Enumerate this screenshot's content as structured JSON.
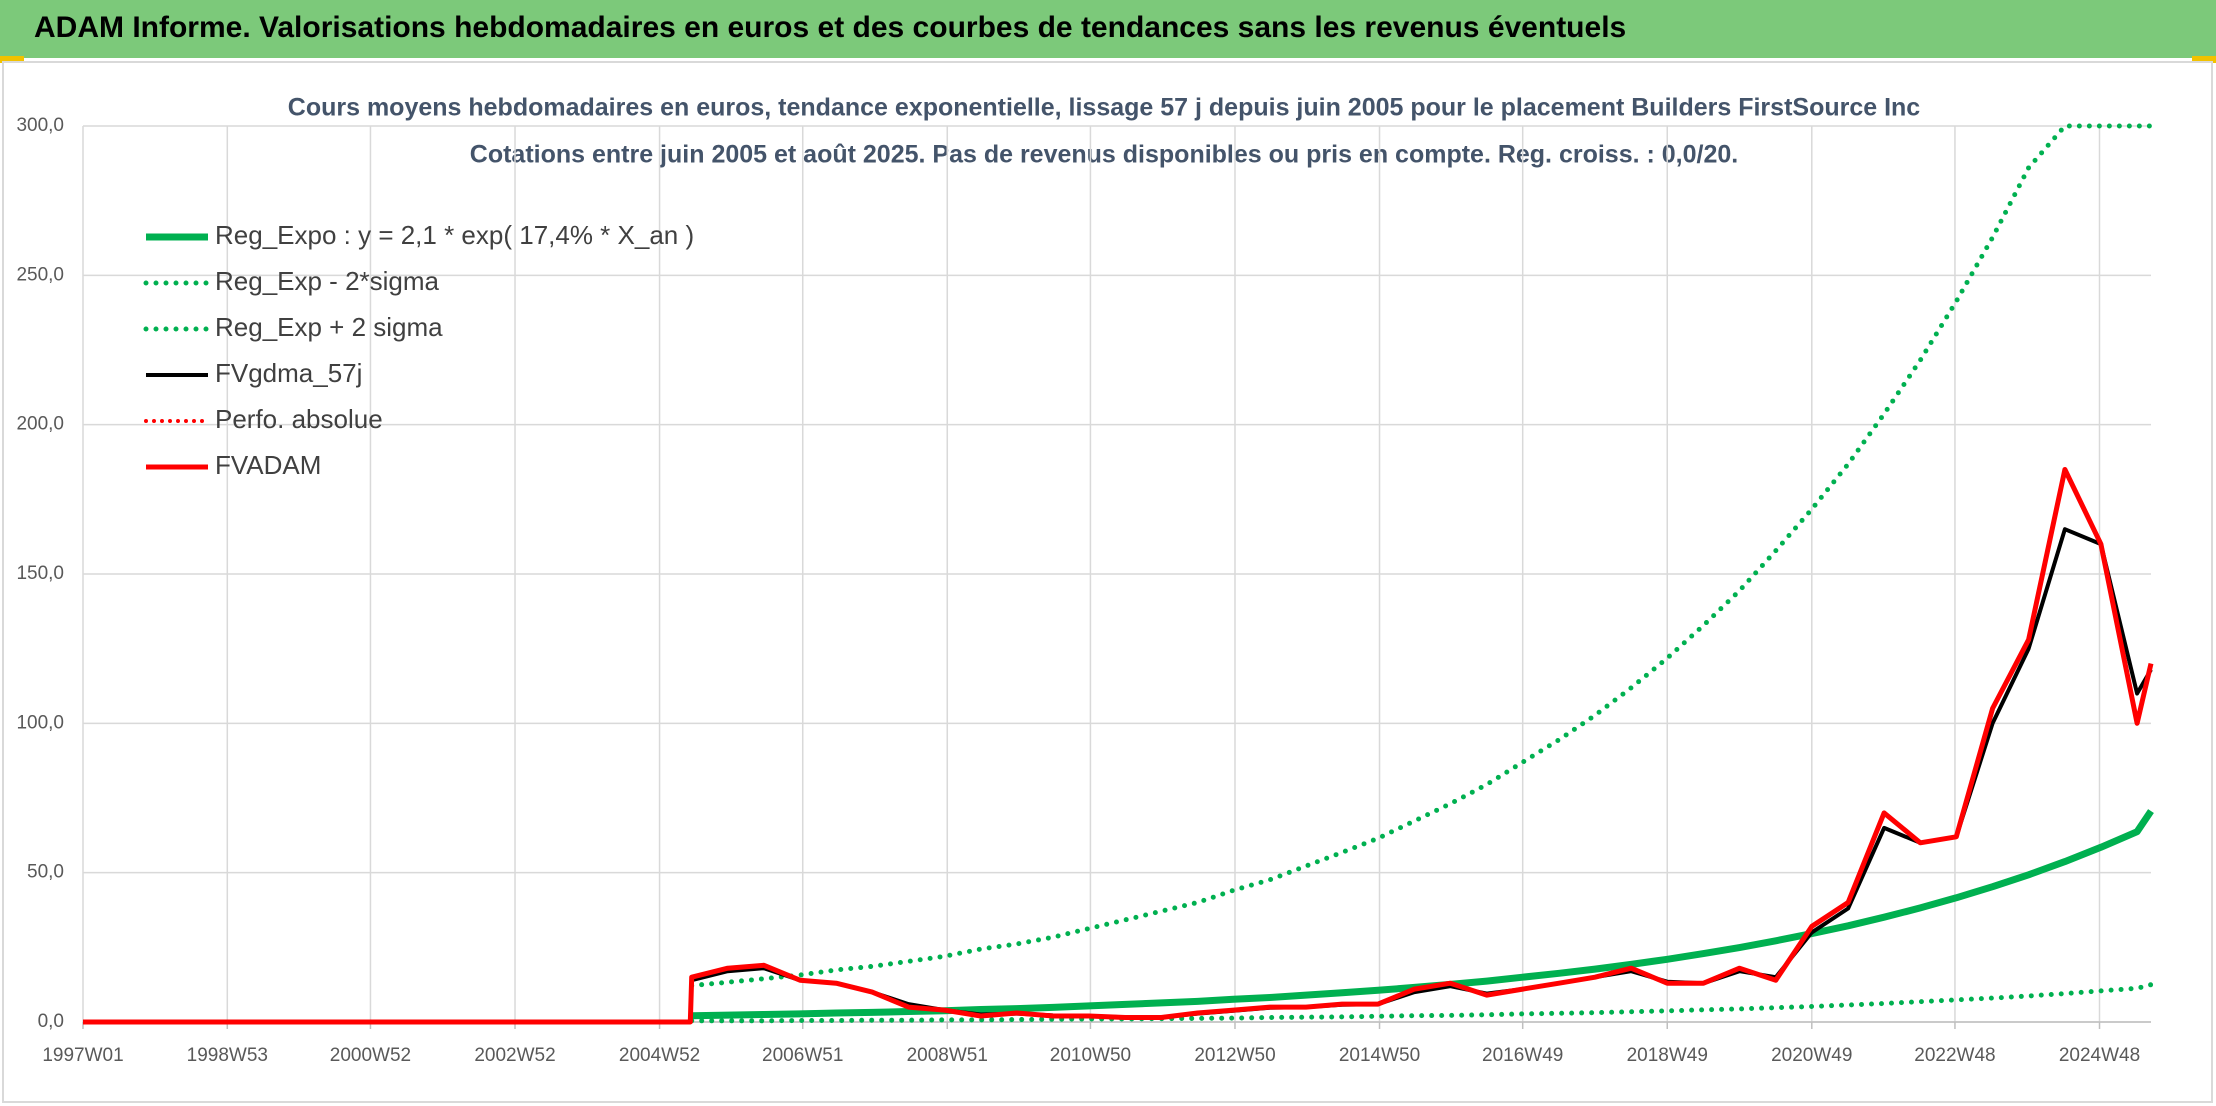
{
  "header": {
    "title": "ADAM Informe. Valorisations hebdomadaires en euros et des courbes de tendances sans les revenus éventuels"
  },
  "chart_data": {
    "type": "line",
    "title": "Cours moyens hebdomadaires en euros, tendance exponentielle, lissage 57 j depuis juin 2005 pour le placement Builders FirstSource Inc",
    "subtitle": "Cotations entre juin 2005 et août 2025. Pas de revenus disponibles ou pris en compte. Reg. croiss. : 0,0/20.",
    "x": [
      "1997W01",
      "2005W22",
      "2005W23",
      "2005W49",
      "2006W23",
      "2006W49",
      "2007W23",
      "2007W49",
      "2008W23",
      "2008W49",
      "2009W23",
      "2009W49",
      "2010W23",
      "2010W49",
      "2011W23",
      "2011W49",
      "2012W23",
      "2012W49",
      "2013W23",
      "2013W49",
      "2014W23",
      "2014W49",
      "2015W23",
      "2015W49",
      "2016W23",
      "2016W49",
      "2017W23",
      "2017W49",
      "2018W23",
      "2018W49",
      "2019W23",
      "2019W49",
      "2020W23",
      "2020W49",
      "2021W23",
      "2021W49",
      "2022W23",
      "2022W49",
      "2023W23",
      "2023W49",
      "2024W23",
      "2024W49",
      "2025W23",
      "2025W33"
    ],
    "xlim": [
      "1997W01",
      "2025W33"
    ],
    "xticks": [
      "1997W01",
      "1998W53",
      "2000W52",
      "2002W52",
      "2004W52",
      "2006W51",
      "2008W51",
      "2010W50",
      "2012W50",
      "2014W50",
      "2016W49",
      "2018W49",
      "2020W49",
      "2022W48",
      "2024W48"
    ],
    "ylim": [
      0,
      300
    ],
    "yticks": [
      {
        "value": 0,
        "label": "0,0"
      },
      {
        "value": 50,
        "label": "50,0"
      },
      {
        "value": 100,
        "label": "100,0"
      },
      {
        "value": 150,
        "label": "150,0"
      },
      {
        "value": 200,
        "label": "200,0"
      },
      {
        "value": 250,
        "label": "250,0"
      },
      {
        "value": 300,
        "label": "300,0"
      }
    ],
    "grid": true,
    "legend": "top-left",
    "series": [
      {
        "name": "Reg_Expo : y = 2,1 * exp( 17,4% *  X_an )",
        "color": "#00b050",
        "style": "solid",
        "width": 7,
        "values": [
          null,
          null,
          2.1,
          2.3,
          2.5,
          2.7,
          3.0,
          3.2,
          3.5,
          3.8,
          4.2,
          4.5,
          4.9,
          5.4,
          5.9,
          6.4,
          6.9,
          7.6,
          8.2,
          9.0,
          9.8,
          10.6,
          11.6,
          12.6,
          13.7,
          15.0,
          16.3,
          17.7,
          19.3,
          21.0,
          22.9,
          24.9,
          27.2,
          29.6,
          32.2,
          35.1,
          38.2,
          41.6,
          45.3,
          49.3,
          53.7,
          58.5,
          63.7,
          70.6
        ]
      },
      {
        "name": "Reg_Exp - 2*sigma",
        "color": "#00b050",
        "style": "dotted",
        "width": 5,
        "values": [
          null,
          null,
          0.4,
          0.4,
          0.4,
          0.5,
          0.5,
          0.6,
          0.6,
          0.7,
          0.7,
          0.8,
          0.9,
          1.0,
          1.0,
          1.1,
          1.2,
          1.3,
          1.5,
          1.6,
          1.7,
          1.9,
          2.1,
          2.2,
          2.4,
          2.7,
          2.9,
          3.1,
          3.4,
          3.7,
          4.1,
          4.4,
          4.8,
          5.2,
          5.7,
          6.2,
          6.8,
          7.4,
          8.0,
          8.7,
          9.5,
          10.4,
          11.3,
          12.5
        ]
      },
      {
        "name": "Reg_Exp + 2 sigma",
        "color": "#00b050",
        "style": "dotted",
        "width": 5,
        "values": [
          null,
          null,
          12.2,
          13.3,
          14.5,
          15.7,
          17.4,
          18.6,
          20.3,
          22.0,
          24.4,
          26.1,
          28.4,
          31.3,
          34.2,
          37.1,
          40.0,
          44.1,
          47.6,
          52.2,
          56.8,
          61.5,
          67.3,
          73.1,
          79.5,
          87.0,
          94.5,
          102.7,
          111.9,
          121.8,
          132.8,
          144.4,
          157.8,
          171.7,
          186.8,
          203.6,
          221.6,
          241.3,
          262.7,
          286.0,
          300,
          300,
          300,
          300
        ]
      },
      {
        "name": "FVgdma_57j",
        "color": "#000000",
        "style": "solid",
        "width": 4,
        "values": [
          0,
          0,
          14,
          17,
          18,
          14,
          13,
          10,
          6,
          4,
          2.5,
          2.8,
          2.2,
          2,
          1.6,
          1.6,
          2.8,
          3.8,
          4.8,
          5,
          5.8,
          6,
          10,
          12,
          9.5,
          11,
          13,
          15,
          17,
          13.5,
          13,
          17,
          15,
          30,
          38,
          65,
          60,
          62,
          100,
          125,
          165,
          160,
          110,
          118
        ]
      },
      {
        "name": "Perfo. absolue",
        "color": "#ff0000",
        "style": "dotted",
        "width": 4,
        "values": [
          null,
          null,
          null,
          null,
          null,
          null,
          null,
          null,
          null,
          null,
          null,
          null,
          null,
          null,
          null,
          null,
          null,
          null,
          null,
          null,
          null,
          null,
          null,
          null,
          null,
          null,
          null,
          null,
          null,
          null,
          null,
          null,
          null,
          null,
          null,
          null,
          null,
          null,
          null,
          null,
          null,
          null,
          null,
          null
        ]
      },
      {
        "name": "FVADAM",
        "color": "#ff0000",
        "style": "solid",
        "width": 5,
        "values": [
          0,
          0,
          15,
          18,
          19,
          14,
          13,
          10,
          5,
          4,
          2,
          3,
          2,
          2,
          1.5,
          1.5,
          3,
          4,
          5,
          5,
          6,
          6,
          11,
          13,
          9,
          11,
          13,
          15,
          18,
          13,
          13,
          18,
          14,
          32,
          40,
          70,
          60,
          62,
          105,
          128,
          185,
          160,
          100,
          120
        ]
      }
    ]
  }
}
